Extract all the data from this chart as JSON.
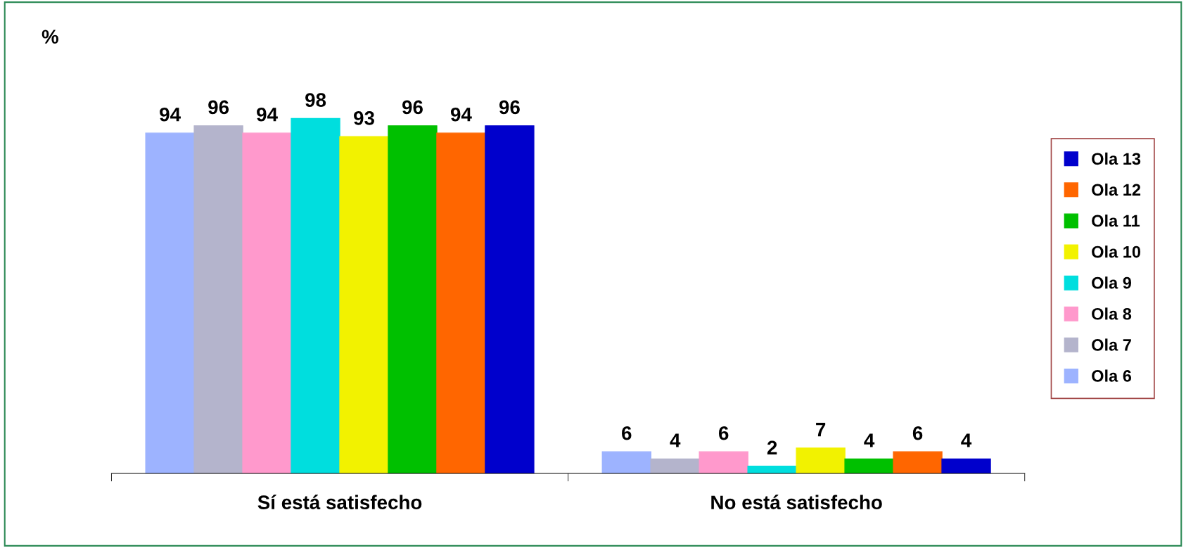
{
  "chart_data": {
    "type": "bar",
    "ylabel": "%",
    "categories": [
      "Sí está satisfecho",
      "No está satisfecho"
    ],
    "series": [
      {
        "name": "Ola 6",
        "color": "#9db3ff",
        "values": [
          94,
          6
        ]
      },
      {
        "name": "Ola 7",
        "color": "#b4b4cc",
        "values": [
          96,
          4
        ]
      },
      {
        "name": "Ola 8",
        "color": "#ff99cc",
        "values": [
          94,
          6
        ]
      },
      {
        "name": "Ola 9",
        "color": "#00dede",
        "values": [
          98,
          2
        ]
      },
      {
        "name": "Ola 10",
        "color": "#f2f200",
        "values": [
          93,
          7
        ]
      },
      {
        "name": "Ola 11",
        "color": "#00c000",
        "values": [
          96,
          4
        ]
      },
      {
        "name": "Ola 12",
        "color": "#ff6600",
        "values": [
          94,
          6
        ]
      },
      {
        "name": "Ola 13",
        "color": "#0000cc",
        "values": [
          96,
          4
        ]
      }
    ],
    "data_labels": true,
    "legend": "right",
    "tick_labels": "x",
    "grid": false
  }
}
